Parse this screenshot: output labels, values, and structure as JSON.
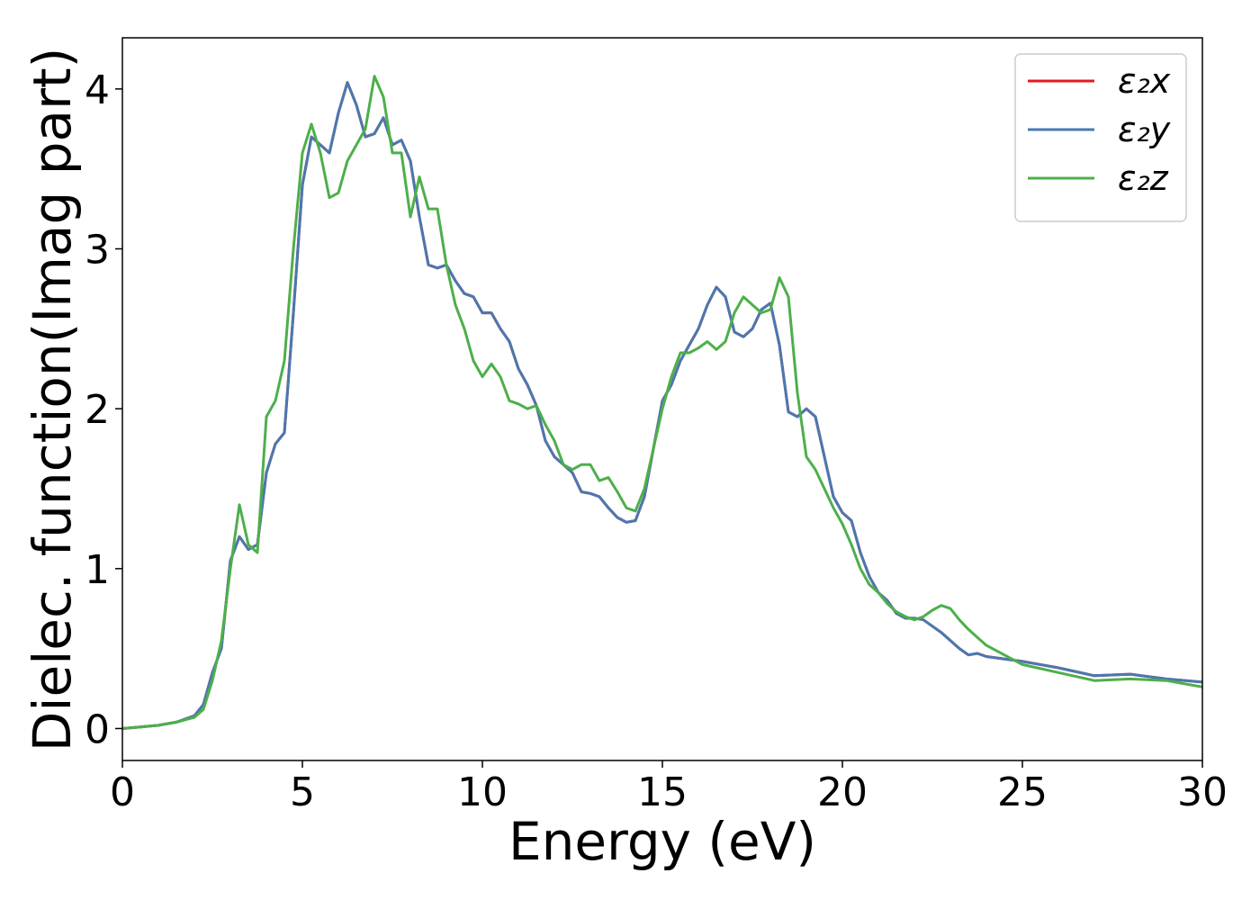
{
  "chart_data": {
    "type": "line",
    "xlabel": "Energy (eV)",
    "ylabel": "Dielec. function(Imag part)",
    "x": [
      0,
      0.5,
      1,
      1.5,
      2,
      2.25,
      2.5,
      2.75,
      3,
      3.25,
      3.5,
      3.75,
      4,
      4.25,
      4.5,
      4.75,
      5,
      5.25,
      5.5,
      5.75,
      6,
      6.25,
      6.5,
      6.75,
      7,
      7.25,
      7.5,
      7.75,
      8,
      8.25,
      8.5,
      8.75,
      9,
      9.25,
      9.5,
      9.75,
      10,
      10.25,
      10.5,
      10.75,
      11,
      11.25,
      11.5,
      11.75,
      12,
      12.25,
      12.5,
      12.75,
      13,
      13.25,
      13.5,
      13.75,
      14,
      14.25,
      14.5,
      14.75,
      15,
      15.25,
      15.5,
      15.75,
      16,
      16.25,
      16.5,
      16.75,
      17,
      17.25,
      17.5,
      17.75,
      18,
      18.25,
      18.5,
      18.75,
      19,
      19.25,
      19.5,
      19.75,
      20,
      20.25,
      20.5,
      20.75,
      21,
      21.25,
      21.5,
      21.75,
      22,
      22.25,
      22.5,
      22.75,
      23,
      23.25,
      23.5,
      23.75,
      24,
      25,
      26,
      27,
      28,
      29,
      30
    ],
    "series": [
      {
        "name": "ε₂x",
        "color": "#e41a1c",
        "values": [
          0,
          0.01,
          0.02,
          0.04,
          0.08,
          0.15,
          0.35,
          0.5,
          1.05,
          1.2,
          1.12,
          1.15,
          1.6,
          1.78,
          1.85,
          2.6,
          3.4,
          3.7,
          3.65,
          3.6,
          3.85,
          4.04,
          3.9,
          3.7,
          3.72,
          3.82,
          3.65,
          3.68,
          3.55,
          3.2,
          2.9,
          2.88,
          2.9,
          2.8,
          2.72,
          2.7,
          2.6,
          2.6,
          2.5,
          2.42,
          2.25,
          2.15,
          2.02,
          1.8,
          1.7,
          1.65,
          1.6,
          1.48,
          1.47,
          1.45,
          1.38,
          1.32,
          1.29,
          1.3,
          1.45,
          1.75,
          2.05,
          2.15,
          2.3,
          2.4,
          2.5,
          2.65,
          2.76,
          2.7,
          2.48,
          2.45,
          2.5,
          2.62,
          2.66,
          2.4,
          1.98,
          1.95,
          2.0,
          1.95,
          1.7,
          1.45,
          1.35,
          1.3,
          1.1,
          0.95,
          0.85,
          0.8,
          0.72,
          0.69,
          0.69,
          0.68,
          0.64,
          0.6,
          0.55,
          0.5,
          0.46,
          0.47,
          0.45,
          0.42,
          0.38,
          0.33,
          0.34,
          0.31,
          0.29
        ]
      },
      {
        "name": "ε₂y",
        "color": "#4a78b0",
        "values": [
          0,
          0.01,
          0.02,
          0.04,
          0.08,
          0.15,
          0.35,
          0.5,
          1.05,
          1.2,
          1.12,
          1.15,
          1.6,
          1.78,
          1.85,
          2.6,
          3.4,
          3.7,
          3.65,
          3.6,
          3.85,
          4.04,
          3.9,
          3.7,
          3.72,
          3.82,
          3.65,
          3.68,
          3.55,
          3.2,
          2.9,
          2.88,
          2.9,
          2.8,
          2.72,
          2.7,
          2.6,
          2.6,
          2.5,
          2.42,
          2.25,
          2.15,
          2.02,
          1.8,
          1.7,
          1.65,
          1.6,
          1.48,
          1.47,
          1.45,
          1.38,
          1.32,
          1.29,
          1.3,
          1.45,
          1.75,
          2.05,
          2.15,
          2.3,
          2.4,
          2.5,
          2.65,
          2.76,
          2.7,
          2.48,
          2.45,
          2.5,
          2.62,
          2.66,
          2.4,
          1.98,
          1.95,
          2.0,
          1.95,
          1.7,
          1.45,
          1.35,
          1.3,
          1.1,
          0.95,
          0.85,
          0.8,
          0.72,
          0.69,
          0.69,
          0.68,
          0.64,
          0.6,
          0.55,
          0.5,
          0.46,
          0.47,
          0.45,
          0.42,
          0.38,
          0.33,
          0.34,
          0.31,
          0.29
        ]
      },
      {
        "name": "ε₂z",
        "color": "#4daf4a",
        "values": [
          0,
          0.01,
          0.02,
          0.04,
          0.07,
          0.12,
          0.3,
          0.55,
          1.0,
          1.4,
          1.15,
          1.1,
          1.95,
          2.05,
          2.3,
          3.0,
          3.6,
          3.78,
          3.6,
          3.32,
          3.35,
          3.55,
          3.65,
          3.75,
          4.08,
          3.95,
          3.6,
          3.6,
          3.2,
          3.45,
          3.25,
          3.25,
          2.9,
          2.65,
          2.5,
          2.3,
          2.2,
          2.28,
          2.2,
          2.05,
          2.03,
          2.0,
          2.02,
          1.9,
          1.8,
          1.65,
          1.62,
          1.65,
          1.65,
          1.55,
          1.57,
          1.48,
          1.38,
          1.36,
          1.5,
          1.75,
          2.0,
          2.2,
          2.35,
          2.35,
          2.38,
          2.42,
          2.37,
          2.42,
          2.6,
          2.7,
          2.65,
          2.6,
          2.62,
          2.82,
          2.7,
          2.1,
          1.7,
          1.62,
          1.5,
          1.38,
          1.28,
          1.15,
          1.0,
          0.9,
          0.85,
          0.78,
          0.73,
          0.7,
          0.68,
          0.7,
          0.74,
          0.77,
          0.75,
          0.68,
          0.62,
          0.57,
          0.52,
          0.4,
          0.35,
          0.3,
          0.31,
          0.3,
          0.26
        ]
      }
    ],
    "xlim": [
      0,
      30
    ],
    "xticks": [
      0,
      5,
      10,
      15,
      20,
      25,
      30
    ],
    "ylim": [
      -0.2,
      4.32
    ],
    "yticks": [
      0,
      1,
      2,
      3,
      4
    ],
    "grid": false,
    "legend": "upper right"
  }
}
